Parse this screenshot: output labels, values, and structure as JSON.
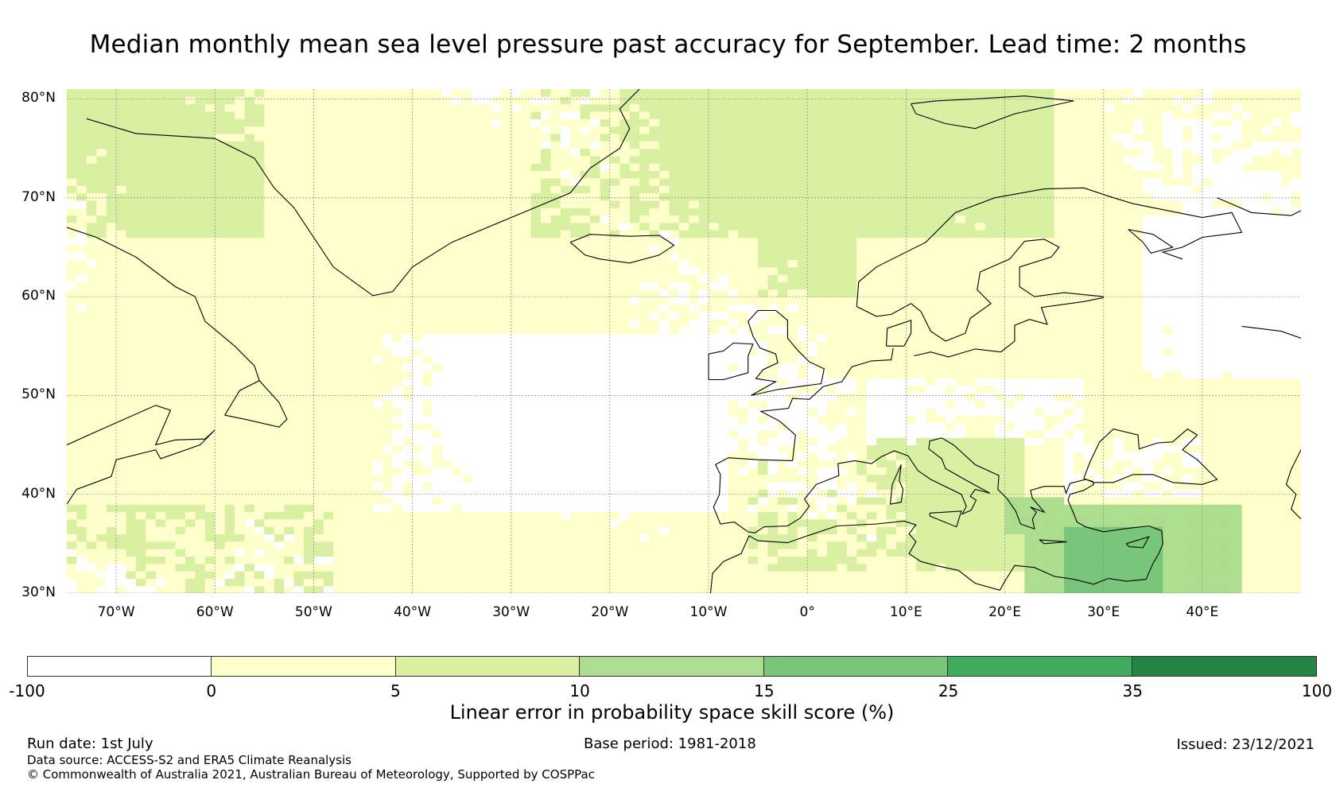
{
  "title": "Median monthly mean sea level pressure past accuracy for September. Lead time: 2 months",
  "map": {
    "lat_labels": [
      "80°N",
      "70°N",
      "60°N",
      "50°N",
      "40°N",
      "30°N"
    ],
    "lat_values": [
      80,
      70,
      60,
      50,
      40,
      30
    ],
    "lon_labels": [
      "70°W",
      "60°W",
      "50°W",
      "40°W",
      "30°W",
      "20°W",
      "10°W",
      "0°",
      "10°E",
      "20°E",
      "30°E",
      "40°E"
    ],
    "lon_values": [
      -70,
      -60,
      -50,
      -40,
      -30,
      -20,
      -10,
      0,
      10,
      20,
      30,
      40
    ],
    "extent": {
      "lon_min": -75,
      "lon_max": 50,
      "lat_min": 30,
      "lat_max": 81
    },
    "skill_regions": [
      {
        "level": 2,
        "lon_min": 22,
        "lon_max": 44,
        "lat_min": 30,
        "lat_max": 39
      },
      {
        "level": 3,
        "lon_min": 26,
        "lon_max": 36,
        "lat_min": 30,
        "lat_max": 37
      }
    ]
  },
  "colorbar": {
    "ticks": [
      "-100",
      "0",
      "5",
      "10",
      "15",
      "25",
      "35",
      "100"
    ],
    "colors": [
      "#ffffff",
      "#ffffcc",
      "#d9f0a3",
      "#addd8e",
      "#78c679",
      "#41ab5d",
      "#238443"
    ],
    "label": "Linear error in probability space skill score (%)"
  },
  "footer": {
    "run_date": "Run date: 1st July",
    "base_period": "Base period: 1981-2018",
    "issued": "Issued: 23/12/2021",
    "data_source": "Data source: ACCESS-S2 and ERA5 Climate Reanalysis",
    "copyright": "© Commonwealth of Australia 2021, Australian Bureau of Meteorology, Supported by COSPPac"
  }
}
